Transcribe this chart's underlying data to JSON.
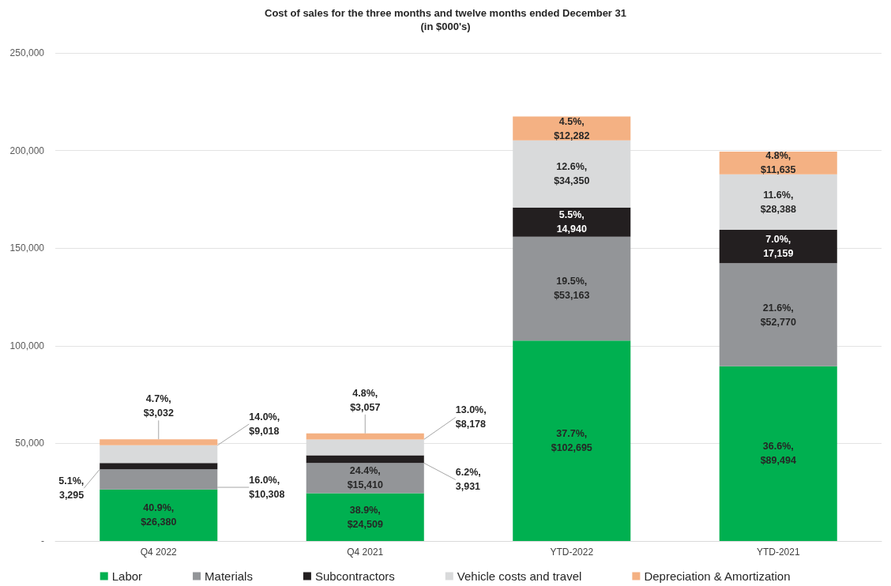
{
  "chart_data": {
    "type": "bar",
    "stacked": true,
    "title": "Cost of sales for the three months and twelve months ended December 31",
    "subtitle": "(in $000's)",
    "categories": [
      "Q4 2022",
      "Q4 2021",
      "YTD-2022",
      "YTD-2021"
    ],
    "series": [
      {
        "name": "Labor",
        "color": "#00b050",
        "values": [
          26380,
          24509,
          102695,
          89494
        ],
        "value_labels": [
          "40.9%, $26,380",
          "38.9%, $24,509",
          "37.7%, $102,695",
          "36.6%, $89,494"
        ]
      },
      {
        "name": "Materials",
        "color": "#939598",
        "values": [
          10308,
          15410,
          53163,
          52770
        ],
        "value_labels": [
          "16.0%, $10,308",
          "24.4%, $15,410",
          "19.5%, $53,163",
          "21.6%, $52,770"
        ]
      },
      {
        "name": "Subcontractors",
        "color": "#231f20",
        "values": [
          3295,
          3931,
          14940,
          17159
        ],
        "value_labels": [
          "5.1%, 3,295",
          "6.2%, 3,931",
          "5.5%, 14,940",
          "7.0%, 17,159"
        ]
      },
      {
        "name": "Vehicle costs and travel",
        "color": "#d9dadb",
        "values": [
          9018,
          8178,
          34350,
          28388
        ],
        "value_labels": [
          "14.0%, $9,018",
          "13.0%, $8,178",
          "12.6%, $34,350",
          "11.6%, $28,388"
        ]
      },
      {
        "name": "Depreciation & Amortization",
        "color": "#f4b183",
        "values": [
          3032,
          3057,
          12282,
          11635
        ],
        "value_labels": [
          "4.7%, $3,032",
          "4.8%, $3,057",
          "4.5%, $12,282",
          "4.8%, $11,635"
        ]
      }
    ],
    "ylim": [
      0,
      250000
    ],
    "yticks": [
      {
        "value": 0,
        "label": "-"
      },
      {
        "value": 50000,
        "label": "50,000"
      },
      {
        "value": 100000,
        "label": "100,000"
      },
      {
        "value": 150000,
        "label": "150,000"
      },
      {
        "value": 200000,
        "label": "200,000"
      },
      {
        "value": 250000,
        "label": "250,000"
      }
    ],
    "grid": "y",
    "legend": "bottom"
  }
}
